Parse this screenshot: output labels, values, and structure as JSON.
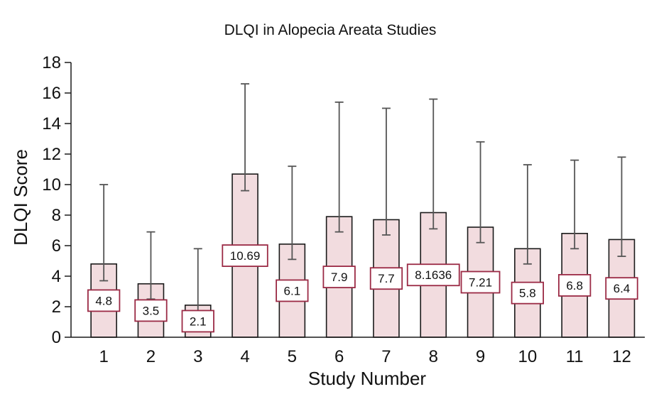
{
  "chart_data": {
    "type": "bar",
    "title": "DLQI in Alopecia Areata Studies",
    "xlabel": "Study Number",
    "ylabel": "DLQI Score",
    "categories": [
      "1",
      "2",
      "3",
      "4",
      "5",
      "6",
      "7",
      "8",
      "9",
      "10",
      "11",
      "12"
    ],
    "values": [
      4.8,
      3.5,
      2.1,
      10.69,
      6.1,
      7.9,
      7.7,
      8.1636,
      7.21,
      5.8,
      6.8,
      6.4
    ],
    "value_labels": [
      "4.8",
      "3.5",
      "2.1",
      "10.69",
      "6.1",
      "7.9",
      "7.7",
      "8.1636",
      "7.21",
      "5.8",
      "6.8",
      "6.4"
    ],
    "error_high": [
      10.0,
      6.9,
      5.8,
      16.6,
      11.2,
      15.4,
      15.0,
      15.6,
      12.8,
      11.3,
      11.6,
      11.8
    ],
    "error_low": [
      3.7,
      2.5,
      0.5,
      9.6,
      5.1,
      6.9,
      6.7,
      7.1,
      6.2,
      4.8,
      5.8,
      5.3
    ],
    "ylim": [
      0,
      18
    ],
    "yticks": [
      "0",
      "2",
      "4",
      "6",
      "8",
      "10",
      "12",
      "14",
      "16",
      "18"
    ],
    "grid": false,
    "colors": {
      "bar_fill": "#f2dcdf",
      "bar_stroke": "#1a1a1a",
      "label_border": "#9b2a45",
      "error_bar": "#555555"
    }
  }
}
